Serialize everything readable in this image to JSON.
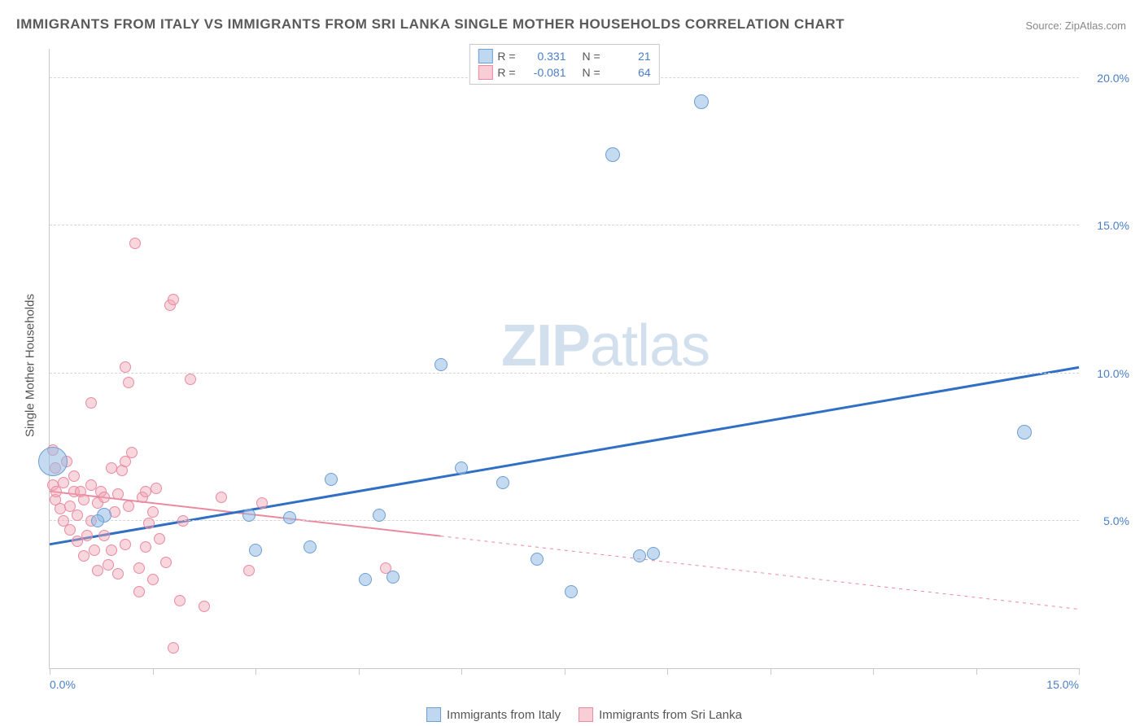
{
  "title": "IMMIGRANTS FROM ITALY VS IMMIGRANTS FROM SRI LANKA SINGLE MOTHER HOUSEHOLDS CORRELATION CHART",
  "source": "Source: ZipAtlas.com",
  "ylabel": "Single Mother Households",
  "watermark_bold": "ZIP",
  "watermark_rest": "atlas",
  "series": [
    {
      "key": "italy",
      "label": "Immigrants from Italy",
      "color_fill": "rgba(148,188,228,0.55)",
      "color_stroke": "#6d9ed4",
      "R": "0.331",
      "N": "21"
    },
    {
      "key": "srilanka",
      "label": "Immigrants from Sri Lanka",
      "color_fill": "rgba(240,164,180,0.45)",
      "color_stroke": "#e98ba0",
      "R": "-0.081",
      "N": "64"
    }
  ],
  "legend_top": {
    "R_label": "R  =",
    "N_label": "N  ="
  },
  "chart": {
    "xlim": [
      0,
      15
    ],
    "ylim": [
      0,
      21
    ],
    "y_ticks": [
      5,
      10,
      15,
      20
    ],
    "y_tick_labels": [
      "5.0%",
      "10.0%",
      "15.0%",
      "20.0%"
    ],
    "x_ticks": [
      0,
      1.5,
      3.0,
      4.5,
      6.0,
      7.5,
      9.0,
      10.5,
      12.0,
      13.5,
      15.0
    ],
    "x_axis_labels": [
      {
        "x": 0,
        "text": "0.0%"
      },
      {
        "x": 15,
        "text": "15.0%"
      }
    ],
    "trend_lines": {
      "blue": {
        "x1": 0,
        "y1": 4.2,
        "x2": 15,
        "y2": 10.2,
        "solid_to_x": 15,
        "stroke": "#2f6fc4",
        "width": 3
      },
      "pink": {
        "x1": 0,
        "y1": 6.0,
        "x2": 15,
        "y2": 2.0,
        "solid_to_x": 5.7,
        "stroke": "#ea8aa0",
        "width": 2
      }
    },
    "marker_radius_default": 8
  },
  "points_italy": [
    {
      "x": 0.05,
      "y": 7.0,
      "r": 18
    },
    {
      "x": 0.8,
      "y": 5.2,
      "r": 9
    },
    {
      "x": 0.7,
      "y": 5.0,
      "r": 8
    },
    {
      "x": 2.9,
      "y": 5.2,
      "r": 8
    },
    {
      "x": 3.0,
      "y": 4.0,
      "r": 8
    },
    {
      "x": 3.5,
      "y": 5.1,
      "r": 8
    },
    {
      "x": 3.8,
      "y": 4.1,
      "r": 8
    },
    {
      "x": 4.1,
      "y": 6.4,
      "r": 8
    },
    {
      "x": 4.6,
      "y": 3.0,
      "r": 8
    },
    {
      "x": 4.8,
      "y": 5.2,
      "r": 8
    },
    {
      "x": 5.0,
      "y": 3.1,
      "r": 8
    },
    {
      "x": 5.7,
      "y": 10.3,
      "r": 8
    },
    {
      "x": 6.0,
      "y": 6.8,
      "r": 8
    },
    {
      "x": 6.6,
      "y": 6.3,
      "r": 8
    },
    {
      "x": 7.1,
      "y": 3.7,
      "r": 8
    },
    {
      "x": 7.6,
      "y": 2.6,
      "r": 8
    },
    {
      "x": 8.2,
      "y": 17.4,
      "r": 9
    },
    {
      "x": 8.6,
      "y": 3.8,
      "r": 8
    },
    {
      "x": 8.8,
      "y": 3.9,
      "r": 8
    },
    {
      "x": 9.5,
      "y": 19.2,
      "r": 9
    },
    {
      "x": 14.2,
      "y": 8.0,
      "r": 9
    }
  ],
  "points_srilanka": [
    {
      "x": 0.05,
      "y": 7.4,
      "r": 7
    },
    {
      "x": 0.05,
      "y": 6.2,
      "r": 7
    },
    {
      "x": 0.08,
      "y": 5.7,
      "r": 7
    },
    {
      "x": 0.08,
      "y": 6.8,
      "r": 7
    },
    {
      "x": 0.1,
      "y": 6.0,
      "r": 7
    },
    {
      "x": 0.15,
      "y": 5.4,
      "r": 7
    },
    {
      "x": 0.2,
      "y": 6.3,
      "r": 7
    },
    {
      "x": 0.2,
      "y": 5.0,
      "r": 7
    },
    {
      "x": 0.25,
      "y": 7.0,
      "r": 7
    },
    {
      "x": 0.3,
      "y": 5.5,
      "r": 7
    },
    {
      "x": 0.3,
      "y": 4.7,
      "r": 7
    },
    {
      "x": 0.35,
      "y": 6.5,
      "r": 7
    },
    {
      "x": 0.35,
      "y": 6.0,
      "r": 7
    },
    {
      "x": 0.4,
      "y": 5.2,
      "r": 7
    },
    {
      "x": 0.4,
      "y": 4.3,
      "r": 7
    },
    {
      "x": 0.45,
      "y": 6.0,
      "r": 7
    },
    {
      "x": 0.5,
      "y": 5.7,
      "r": 7
    },
    {
      "x": 0.5,
      "y": 3.8,
      "r": 7
    },
    {
      "x": 0.55,
      "y": 4.5,
      "r": 7
    },
    {
      "x": 0.6,
      "y": 6.2,
      "r": 7
    },
    {
      "x": 0.6,
      "y": 5.0,
      "r": 7
    },
    {
      "x": 0.6,
      "y": 9.0,
      "r": 7
    },
    {
      "x": 0.65,
      "y": 4.0,
      "r": 7
    },
    {
      "x": 0.7,
      "y": 5.6,
      "r": 7
    },
    {
      "x": 0.7,
      "y": 3.3,
      "r": 7
    },
    {
      "x": 0.75,
      "y": 6.0,
      "r": 7
    },
    {
      "x": 0.8,
      "y": 4.5,
      "r": 7
    },
    {
      "x": 0.8,
      "y": 5.8,
      "r": 7
    },
    {
      "x": 0.85,
      "y": 3.5,
      "r": 7
    },
    {
      "x": 0.9,
      "y": 6.8,
      "r": 7
    },
    {
      "x": 0.9,
      "y": 4.0,
      "r": 7
    },
    {
      "x": 0.95,
      "y": 5.3,
      "r": 7
    },
    {
      "x": 1.0,
      "y": 5.9,
      "r": 7
    },
    {
      "x": 1.0,
      "y": 3.2,
      "r": 7
    },
    {
      "x": 1.05,
      "y": 6.7,
      "r": 7
    },
    {
      "x": 1.1,
      "y": 4.2,
      "r": 7
    },
    {
      "x": 1.1,
      "y": 7.0,
      "r": 7
    },
    {
      "x": 1.1,
      "y": 10.2,
      "r": 7
    },
    {
      "x": 1.15,
      "y": 5.5,
      "r": 7
    },
    {
      "x": 1.15,
      "y": 9.7,
      "r": 7
    },
    {
      "x": 1.2,
      "y": 7.3,
      "r": 7
    },
    {
      "x": 1.25,
      "y": 14.4,
      "r": 7
    },
    {
      "x": 1.3,
      "y": 3.4,
      "r": 7
    },
    {
      "x": 1.3,
      "y": 2.6,
      "r": 7
    },
    {
      "x": 1.35,
      "y": 5.8,
      "r": 7
    },
    {
      "x": 1.4,
      "y": 4.1,
      "r": 7
    },
    {
      "x": 1.4,
      "y": 6.0,
      "r": 7
    },
    {
      "x": 1.45,
      "y": 4.9,
      "r": 7
    },
    {
      "x": 1.5,
      "y": 3.0,
      "r": 7
    },
    {
      "x": 1.5,
      "y": 5.3,
      "r": 7
    },
    {
      "x": 1.55,
      "y": 6.1,
      "r": 7
    },
    {
      "x": 1.6,
      "y": 4.4,
      "r": 7
    },
    {
      "x": 1.7,
      "y": 3.6,
      "r": 7
    },
    {
      "x": 1.75,
      "y": 12.3,
      "r": 7
    },
    {
      "x": 1.8,
      "y": 0.7,
      "r": 7
    },
    {
      "x": 1.8,
      "y": 12.5,
      "r": 7
    },
    {
      "x": 1.9,
      "y": 2.3,
      "r": 7
    },
    {
      "x": 1.95,
      "y": 5.0,
      "r": 7
    },
    {
      "x": 2.05,
      "y": 9.8,
      "r": 7
    },
    {
      "x": 2.25,
      "y": 2.1,
      "r": 7
    },
    {
      "x": 2.5,
      "y": 5.8,
      "r": 7
    },
    {
      "x": 2.9,
      "y": 3.3,
      "r": 7
    },
    {
      "x": 3.1,
      "y": 5.6,
      "r": 7
    },
    {
      "x": 4.9,
      "y": 3.4,
      "r": 7
    }
  ]
}
